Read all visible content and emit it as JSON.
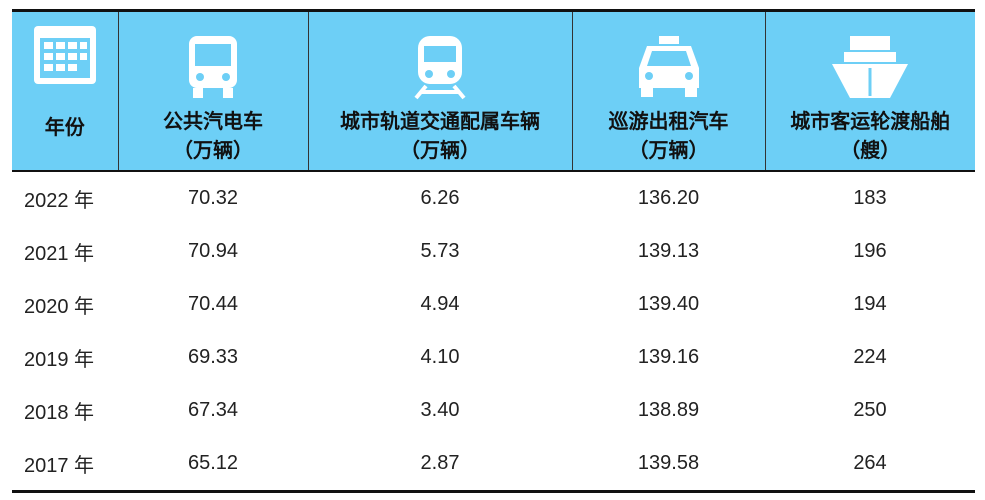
{
  "table": {
    "header": [
      {
        "label": "年份"
      },
      {
        "label": "公共汽电车",
        "unit": "（万辆）"
      },
      {
        "label": "城市轨道交通配属车辆",
        "unit": "（万辆）"
      },
      {
        "label": "巡游出租汽车",
        "unit": "（万辆）"
      },
      {
        "label": "城市客运轮渡船舶",
        "unit": "（艘）"
      }
    ],
    "rows": [
      [
        "2022 年",
        "70.32",
        "6.26",
        "136.20",
        "183"
      ],
      [
        "2021 年",
        "70.94",
        "5.73",
        "139.13",
        "196"
      ],
      [
        "2020 年",
        "70.44",
        "4.94",
        "139.40",
        "194"
      ],
      [
        "2019 年",
        "69.33",
        "4.10",
        "139.16",
        "224"
      ],
      [
        "2018 年",
        "67.34",
        "3.40",
        "138.89",
        "250"
      ],
      [
        "2017 年",
        "65.12",
        "2.87",
        "139.58",
        "264"
      ]
    ]
  }
}
